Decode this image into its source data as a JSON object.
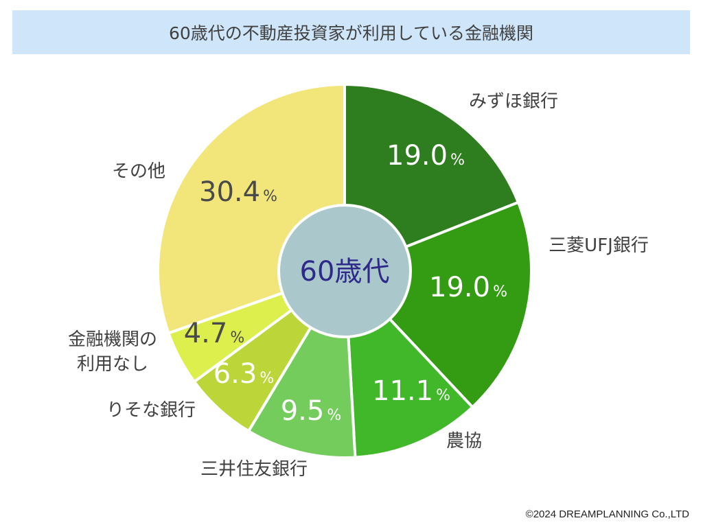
{
  "title": "60歳代の不動産投資家が利用している金融機関",
  "center_label": "60歳代",
  "copyright": "©2024 DREAMPLANNING Co.,LTD",
  "chart_data": {
    "type": "pie",
    "variant": "donut",
    "title": "60歳代の不動産投資家が利用している金融機関",
    "center_label": "60歳代",
    "unit": "%",
    "slices": [
      {
        "label": "みずほ銀行",
        "value": 19.0,
        "value_text": "19.0",
        "color": "#2e7d1e",
        "value_color": "#ffffff"
      },
      {
        "label": "三菱UFJ銀行",
        "value": 19.0,
        "value_text": "19.0",
        "color": "#339c12",
        "value_color": "#ffffff"
      },
      {
        "label": "農協",
        "value": 11.1,
        "value_text": "11.1",
        "color": "#41b82a",
        "value_color": "#ffffff"
      },
      {
        "label": "三井住友銀行",
        "value": 9.5,
        "value_text": "9.5",
        "color": "#74cc5c",
        "value_color": "#ffffff"
      },
      {
        "label": "りそな銀行",
        "value": 6.3,
        "value_text": "6.3",
        "color": "#bcd63a",
        "value_color": "#ffffff"
      },
      {
        "label": "金融機関の\n利用なし",
        "value": 4.7,
        "value_text": "4.7",
        "color": "#dcef4c",
        "value_color": "#4a4a4a"
      },
      {
        "label": "その他",
        "value": 30.4,
        "value_text": "30.4",
        "color": "#f2e57a",
        "value_color": "#4a4a4a"
      }
    ],
    "colors": {
      "center_fill": "#aac8cb",
      "center_text": "#2e2a8a",
      "label_text": "#404040"
    }
  }
}
